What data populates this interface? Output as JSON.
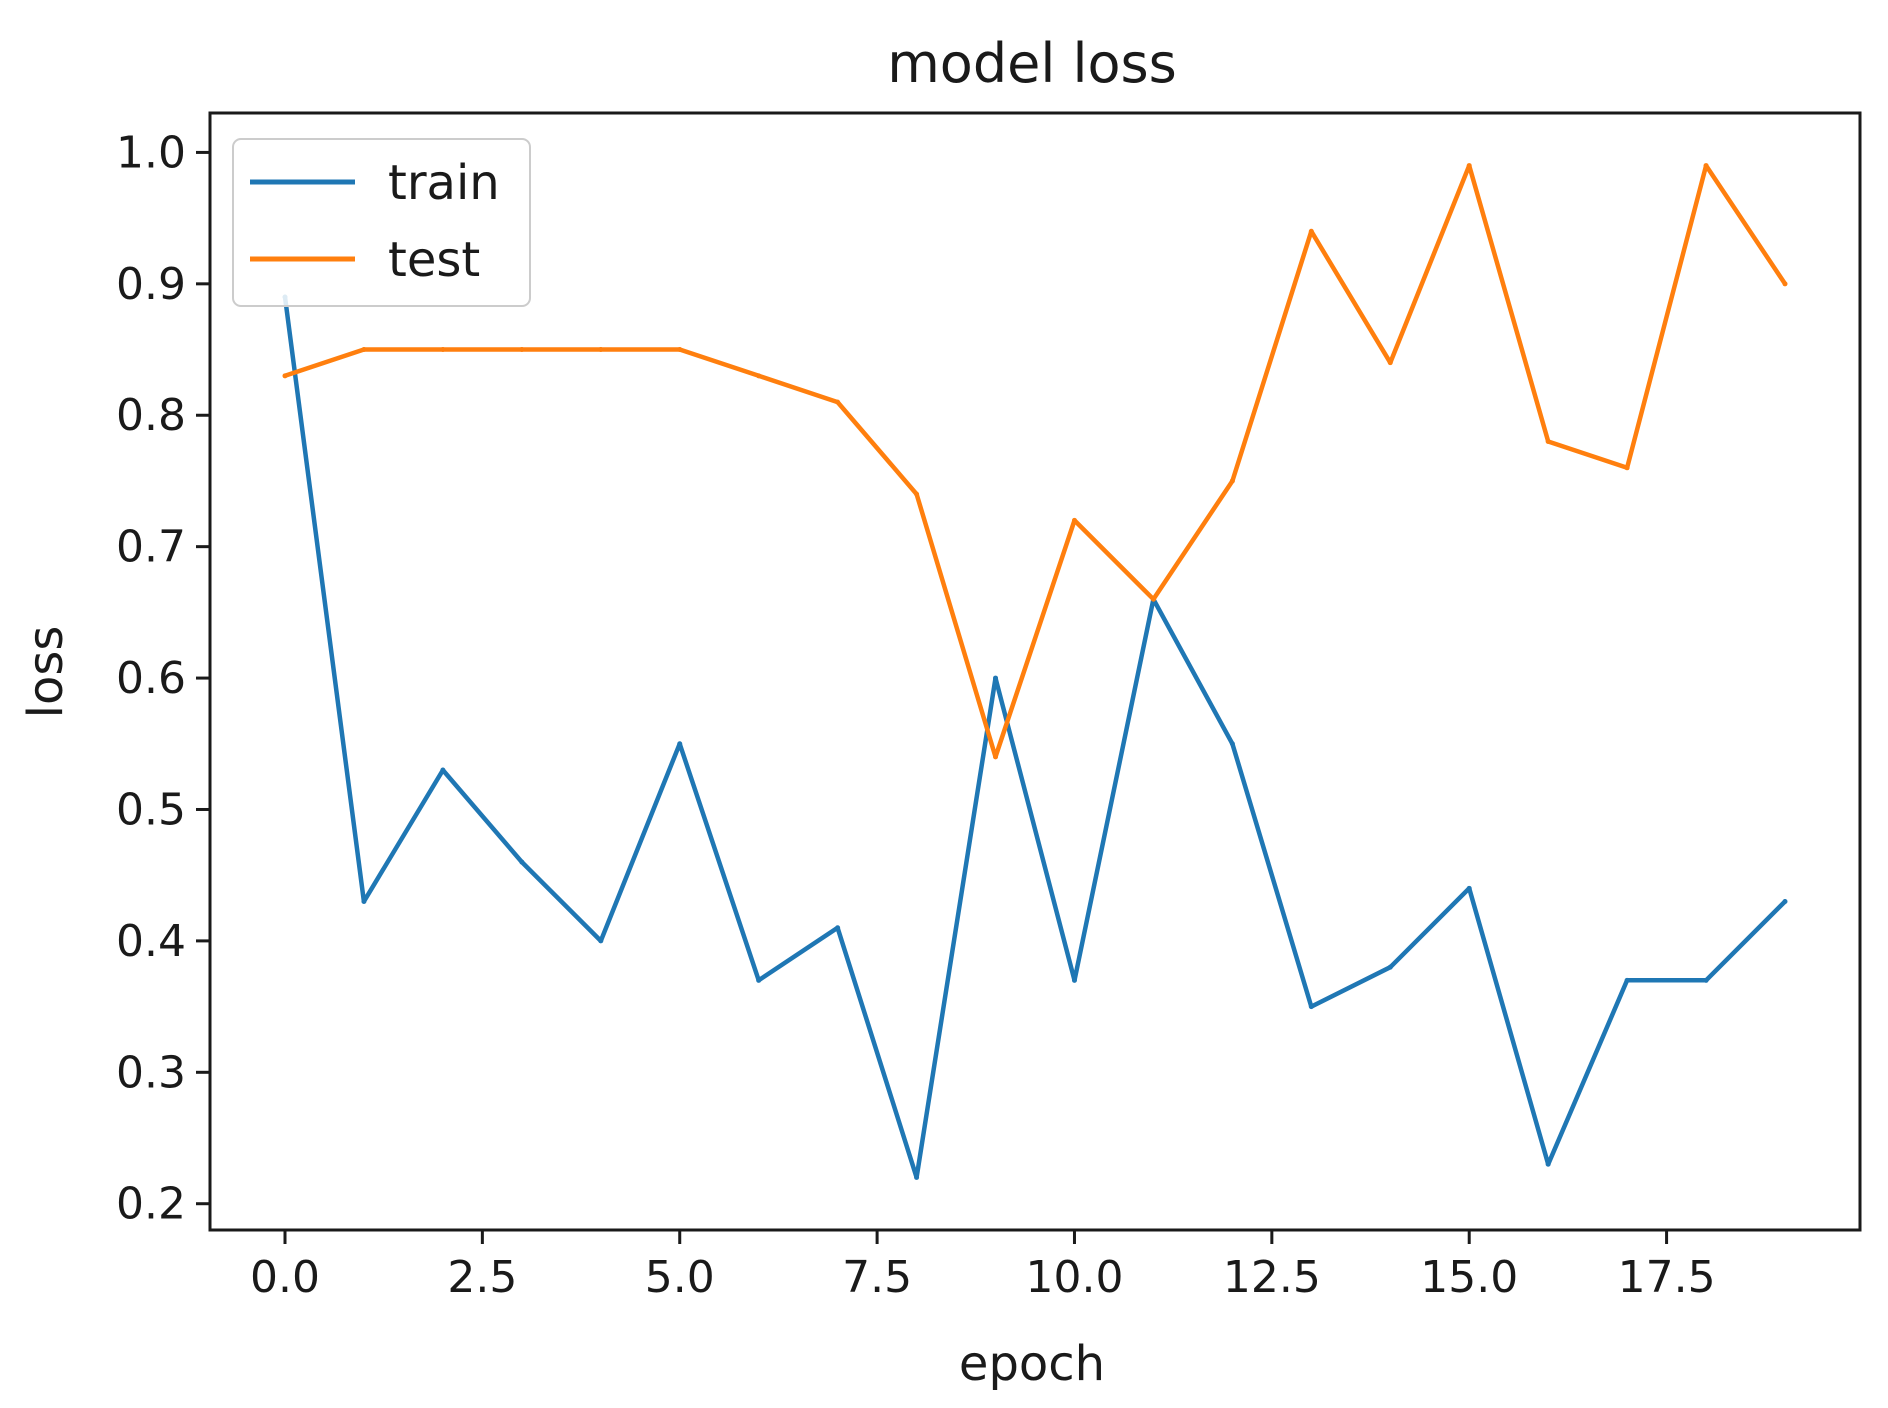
{
  "chart_data": {
    "type": "line",
    "title": "model loss",
    "xlabel": "epoch",
    "ylabel": "loss",
    "xlim": [
      -0.95,
      19.95
    ],
    "ylim": [
      0.18,
      1.03
    ],
    "xticks": [
      0.0,
      2.5,
      5.0,
      7.5,
      10.0,
      12.5,
      15.0,
      17.5
    ],
    "xtick_labels": [
      "0.0",
      "2.5",
      "5.0",
      "7.5",
      "10.0",
      "12.5",
      "15.0",
      "17.5"
    ],
    "yticks": [
      0.2,
      0.3,
      0.4,
      0.5,
      0.6,
      0.7,
      0.8,
      0.9,
      1.0
    ],
    "ytick_labels": [
      "0.2",
      "0.3",
      "0.4",
      "0.5",
      "0.6",
      "0.7",
      "0.8",
      "0.9",
      "1.0"
    ],
    "grid": false,
    "legend_position": "top-left",
    "x": [
      0,
      1,
      2,
      3,
      4,
      5,
      6,
      7,
      8,
      9,
      10,
      11,
      12,
      13,
      14,
      15,
      16,
      17,
      18,
      19
    ],
    "series": [
      {
        "name": "train",
        "color": "#1f77b4",
        "values": [
          0.89,
          0.43,
          0.53,
          0.46,
          0.4,
          0.55,
          0.37,
          0.41,
          0.22,
          0.6,
          0.37,
          0.66,
          0.55,
          0.35,
          0.38,
          0.44,
          0.23,
          0.37,
          0.37,
          0.43
        ]
      },
      {
        "name": "test",
        "color": "#ff7f0e",
        "values": [
          0.83,
          0.85,
          0.85,
          0.85,
          0.85,
          0.85,
          0.83,
          0.81,
          0.74,
          0.54,
          0.72,
          0.66,
          0.75,
          0.94,
          0.84,
          0.99,
          0.78,
          0.76,
          0.99,
          0.9
        ]
      }
    ]
  }
}
